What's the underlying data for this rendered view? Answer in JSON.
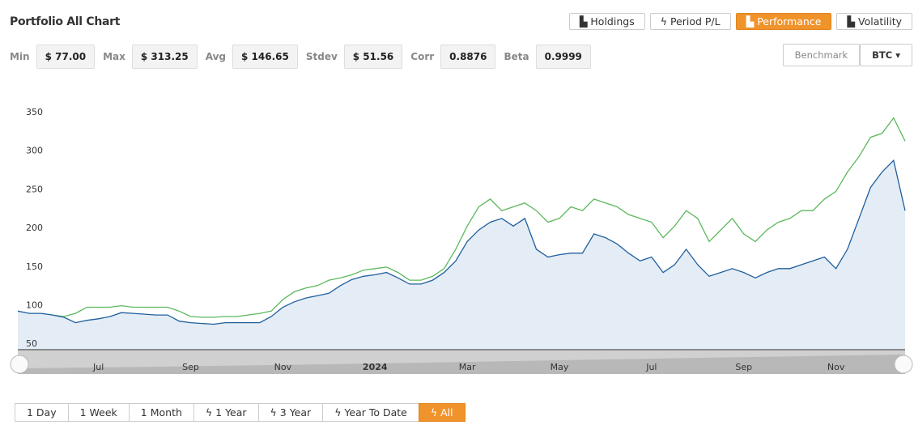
{
  "header": {
    "title": "Portfolio All Chart"
  },
  "stats": [
    {
      "label": "Min",
      "value": "$ 77.00"
    },
    {
      "label": "Max",
      "value": "$ 313.25"
    },
    {
      "label": "Avg",
      "value": "$ 146.65"
    },
    {
      "label": "Stdev",
      "value": "$ 51.56"
    },
    {
      "label": "Corr",
      "value": "0.8876"
    },
    {
      "label": "Beta",
      "value": "0.9999"
    }
  ],
  "view_tabs": [
    "Holdings",
    "Period P/L",
    "Performance",
    "Volatility"
  ],
  "benchmark": {
    "label": "Benchmark",
    "value": "BTC"
  },
  "ranges": [
    "1 Day",
    "1 Week",
    "1 Month",
    "1 Year",
    "3 Year",
    "Year To Date",
    "All"
  ],
  "chart_data": {
    "type": "line",
    "ylim": [
      45,
      395
    ],
    "yticks": [
      50,
      100,
      150,
      200,
      250,
      300,
      350
    ],
    "grid": false,
    "categories": [
      null,
      null,
      null,
      null,
      null,
      null,
      null,
      "Jul",
      null,
      null,
      null,
      null,
      null,
      null,
      null,
      "Sep",
      null,
      null,
      null,
      null,
      null,
      null,
      null,
      "Nov",
      null,
      null,
      null,
      null,
      null,
      null,
      null,
      "2024",
      null,
      null,
      null,
      null,
      null,
      null,
      null,
      "Mar",
      null,
      null,
      null,
      null,
      null,
      null,
      null,
      "May",
      null,
      null,
      null,
      null,
      null,
      null,
      null,
      "Jul",
      null,
      null,
      null,
      null,
      null,
      null,
      null,
      "Sep",
      null,
      null,
      null,
      null,
      null,
      null,
      null,
      "Nov",
      null,
      null,
      null,
      null,
      null,
      null
    ],
    "series": [
      {
        "name": "Portfolio",
        "color": "#1f5f9e",
        "fill": "#e4ecf5",
        "values": [
          95,
          92,
          92,
          90,
          87,
          80,
          83,
          85,
          88,
          93,
          92,
          91,
          90,
          90,
          82,
          80,
          79,
          78,
          80,
          80,
          80,
          80,
          88,
          100,
          107,
          112,
          115,
          118,
          128,
          136,
          140,
          142,
          145,
          138,
          130,
          130,
          135,
          145,
          160,
          185,
          200,
          210,
          215,
          205,
          215,
          175,
          165,
          168,
          170,
          170,
          195,
          190,
          182,
          170,
          160,
          165,
          145,
          155,
          175,
          155,
          140,
          145,
          150,
          145,
          138,
          145,
          150,
          150,
          155,
          160,
          165,
          150,
          175,
          215,
          255,
          275,
          290,
          225
        ]
      },
      {
        "name": "BTC",
        "color": "#5cb85c",
        "values": [
          95,
          90,
          92,
          90,
          88,
          92,
          100,
          100,
          100,
          102,
          100,
          100,
          100,
          100,
          95,
          88,
          87,
          87,
          88,
          88,
          90,
          92,
          95,
          110,
          120,
          125,
          128,
          135,
          138,
          142,
          148,
          150,
          152,
          145,
          135,
          135,
          140,
          150,
          175,
          205,
          230,
          240,
          225,
          230,
          235,
          225,
          210,
          215,
          230,
          225,
          240,
          235,
          230,
          220,
          215,
          210,
          190,
          205,
          225,
          215,
          185,
          200,
          215,
          195,
          185,
          200,
          210,
          215,
          225,
          225,
          240,
          250,
          275,
          295,
          320,
          325,
          345,
          315
        ]
      }
    ]
  }
}
